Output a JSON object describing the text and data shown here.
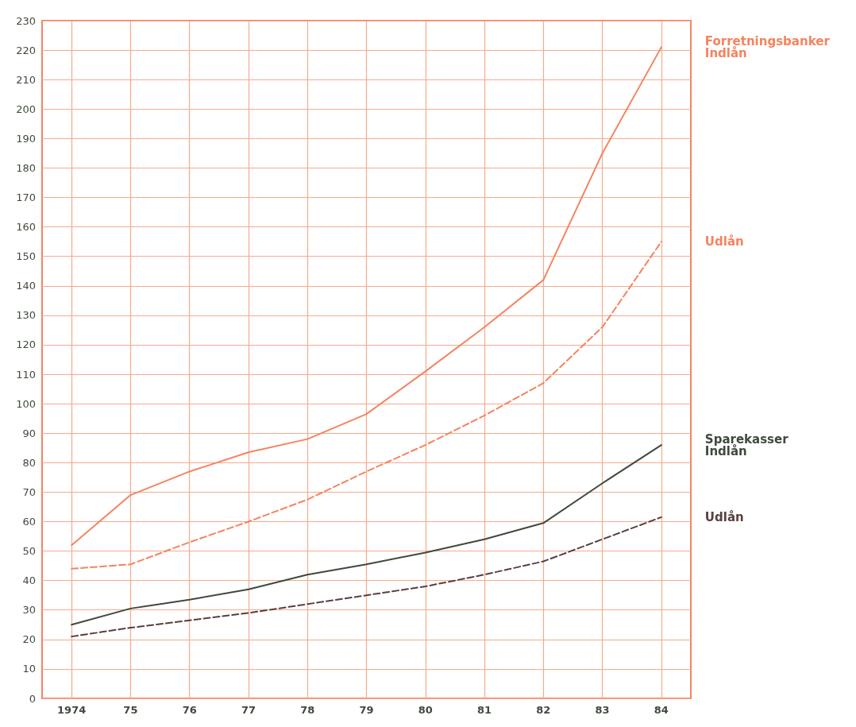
{
  "chart_data": {
    "type": "line",
    "categories": [
      "1974",
      "75",
      "76",
      "77",
      "78",
      "79",
      "80",
      "81",
      "82",
      "83",
      "84"
    ],
    "series": [
      {
        "name": "Forretningsbanker\nIndlån",
        "color": "#f4845f",
        "values": [
          52,
          69,
          77,
          83.5,
          88,
          96.5,
          111,
          126,
          142,
          185,
          221
        ]
      },
      {
        "name": "Udlån",
        "color": "#f4845f",
        "line_style": "dashed",
        "values": [
          44,
          45.5,
          53,
          60,
          67.5,
          77,
          86,
          96,
          107,
          126,
          155
        ]
      },
      {
        "name": "Sparekasser\nIndlån",
        "color": "#3e4a3c",
        "values": [
          25,
          30.5,
          33.5,
          37,
          42,
          45.5,
          49.5,
          54,
          59.5,
          73,
          86
        ]
      },
      {
        "name": "Udlån",
        "color": "#5a3f3f",
        "line_style": "dashed",
        "values": [
          21,
          24,
          26.5,
          29,
          32,
          35,
          38,
          42,
          46.5,
          54,
          61.5
        ]
      }
    ],
    "ylim": [
      0,
      230
    ],
    "yticks": [
      0,
      10,
      20,
      30,
      40,
      50,
      60,
      70,
      80,
      90,
      100,
      110,
      120,
      130,
      140,
      150,
      160,
      170,
      180,
      190,
      200,
      210,
      220,
      230
    ],
    "grid": true,
    "legend": false,
    "marker": "none",
    "line_style": "solid"
  }
}
